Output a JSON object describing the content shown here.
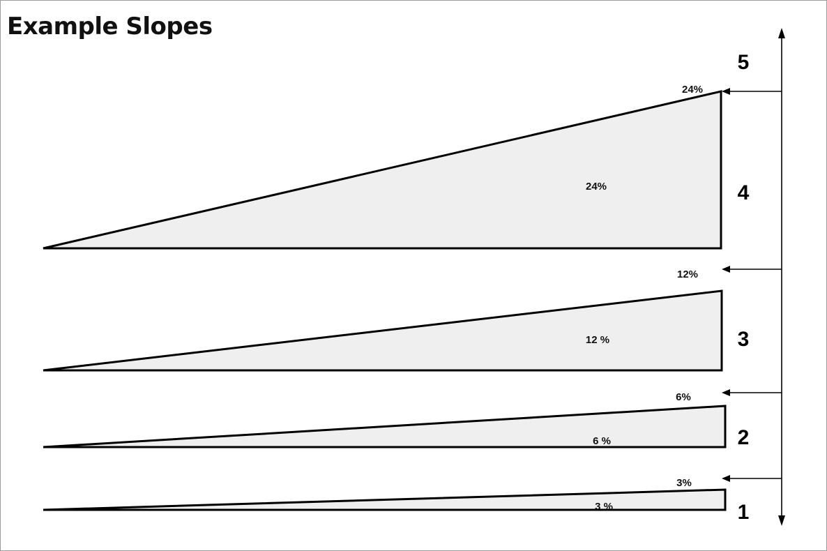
{
  "title": "Example Slopes",
  "levels": [
    "1",
    "2",
    "3",
    "4",
    "5"
  ],
  "slopes": [
    {
      "inner_label": "3 %",
      "edge_label": "3%"
    },
    {
      "inner_label": "6 %",
      "edge_label": "6%"
    },
    {
      "inner_label": "12 %",
      "edge_label": "12%"
    },
    {
      "inner_label": "24%",
      "edge_label": "24%"
    }
  ],
  "colors": {
    "wedge_fill": "#efefef",
    "stroke": "#000000"
  }
}
